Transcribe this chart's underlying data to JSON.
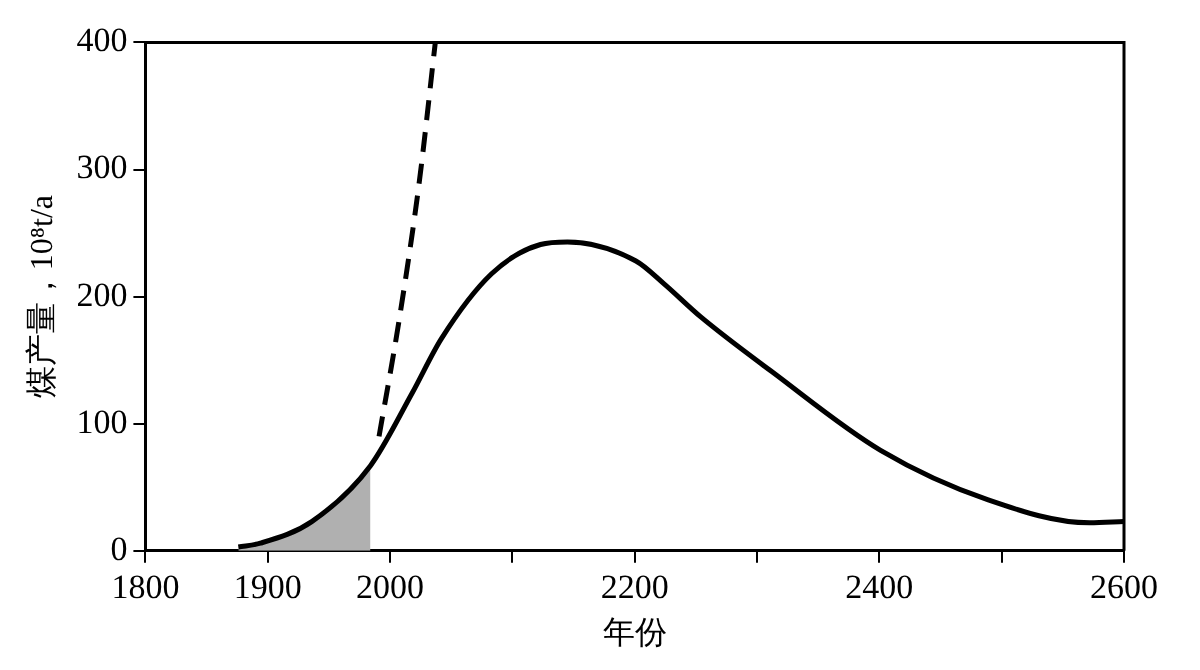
{
  "chart_data": {
    "type": "line",
    "xlabel": "年份",
    "ylabel": "煤产量，10⁸t/a",
    "xlim": [
      1800,
      2600
    ],
    "ylim": [
      0,
      400
    ],
    "xticks": [
      1800,
      1900,
      2000,
      {
        "value": 2100,
        "label": null
      },
      2200,
      {
        "value": 2300,
        "label": null
      },
      2400,
      {
        "value": 2500,
        "label": null
      },
      2600
    ],
    "yticks": [
      0,
      100,
      200,
      300,
      400
    ],
    "grid": false,
    "legend": false,
    "marker": "none",
    "series": [
      {
        "type": "area",
        "color": "#b0b0b0",
        "x": [
          1876,
          1894,
          1936,
          1984
        ],
        "values": [
          3,
          6,
          23,
          67
        ]
      },
      {
        "color": "#000000",
        "line_style": "solid",
        "x": [
          1876,
          1894,
          1936,
          1984,
          2018,
          2042,
          2083,
          2123,
          2145,
          2201,
          2224,
          2254,
          2312,
          2401,
          2489,
          2572,
          2600
        ],
        "values": [
          3,
          6,
          23,
          67,
          124,
          167,
          218,
          241,
          243,
          228,
          210,
          184,
          141,
          79,
          40,
          22,
          23
        ]
      },
      {
        "color": "#000000",
        "line_style": "dashed",
        "x": [
          1991,
          2007,
          2024,
          2037
        ],
        "values": [
          90,
          179,
          291,
          400
        ]
      }
    ]
  }
}
